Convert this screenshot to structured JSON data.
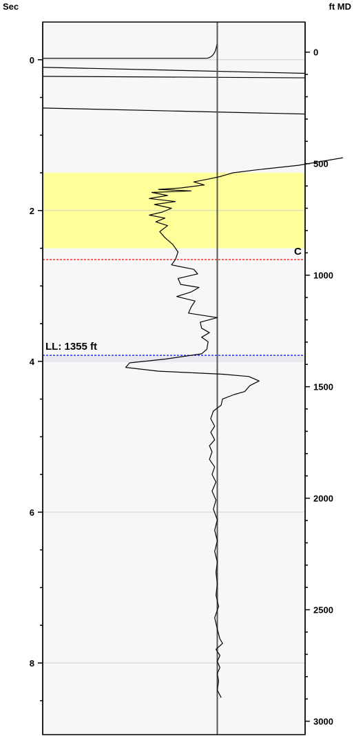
{
  "chart_data": {
    "type": "line",
    "left_axis": {
      "unit": "Sec",
      "range": [
        -0.5,
        8.95
      ],
      "ticks": [
        0,
        2,
        4,
        6,
        8
      ],
      "tick_labels": [
        "0",
        "2",
        "4",
        "6",
        "8"
      ]
    },
    "right_axis": {
      "unit": "ft MD",
      "range": [
        -135,
        3060
      ],
      "ticks": [
        0,
        500,
        1000,
        1500,
        2000,
        2500,
        3000
      ],
      "tick_labels": [
        "0",
        "500",
        "1000",
        "1500",
        "2000",
        "2500",
        "3000"
      ]
    },
    "grid": true,
    "gridlines_sec": [
      0,
      2,
      4,
      6,
      8
    ],
    "highlight_zone": {
      "from_sec": 1.5,
      "to_sec": 2.5,
      "color": "#ffff99"
    },
    "marker_c": {
      "sec": 2.65,
      "label": "C",
      "color": "#ff0000"
    },
    "marker_ll": {
      "sec": 3.92,
      "label": "LL: 1355 ft",
      "color": "#0000ff"
    },
    "center_value": 0,
    "x_range": [
      -1,
      1
    ],
    "series": [
      {
        "points": [
          [
            -1.0,
            0.5
          ],
          [
            1.0,
            0.55
          ]
        ]
      }
    ],
    "curve_x": [
      0.0,
      0.0,
      0.02,
      0.0,
      -0.02,
      0.0,
      0.02,
      0.01,
      0.0,
      -0.02,
      0.0
    ],
    "curve_sec": [
      1.6,
      1.7,
      1.8,
      1.9,
      2.0,
      2.1,
      2.2,
      2.3,
      2.4,
      2.5,
      2.6
    ],
    "main_curve": [
      [
        0.96,
        1.3
      ],
      [
        0.62,
        1.4
      ],
      [
        0.3,
        1.46
      ],
      [
        0.12,
        1.5
      ],
      [
        0.02,
        1.55
      ],
      [
        -0.06,
        1.58
      ],
      [
        -0.18,
        1.62
      ],
      [
        -0.1,
        1.66
      ],
      [
        -0.28,
        1.7
      ],
      [
        -0.45,
        1.72
      ],
      [
        -0.2,
        1.74
      ],
      [
        -0.5,
        1.76
      ],
      [
        -0.38,
        1.8
      ],
      [
        -0.52,
        1.84
      ],
      [
        -0.32,
        1.88
      ],
      [
        -0.48,
        1.92
      ],
      [
        -0.35,
        1.97
      ],
      [
        -0.42,
        2.02
      ],
      [
        -0.52,
        2.06
      ],
      [
        -0.4,
        2.1
      ],
      [
        -0.47,
        2.15
      ],
      [
        -0.38,
        2.2
      ],
      [
        -0.44,
        2.28
      ],
      [
        -0.4,
        2.36
      ],
      [
        -0.34,
        2.45
      ],
      [
        -0.3,
        2.55
      ],
      [
        -0.32,
        2.65
      ],
      [
        -0.35,
        2.72
      ],
      [
        -0.18,
        2.78
      ],
      [
        -0.15,
        2.84
      ],
      [
        -0.3,
        2.9
      ],
      [
        -0.28,
        2.98
      ],
      [
        -0.14,
        3.02
      ],
      [
        -0.2,
        3.08
      ],
      [
        -0.31,
        3.14
      ],
      [
        -0.17,
        3.2
      ],
      [
        -0.2,
        3.28
      ],
      [
        -0.22,
        3.36
      ],
      [
        0.0,
        3.42
      ],
      [
        -0.13,
        3.48
      ],
      [
        -0.12,
        3.56
      ],
      [
        -0.06,
        3.62
      ],
      [
        -0.12,
        3.68
      ],
      [
        -0.07,
        3.74
      ],
      [
        -0.08,
        3.84
      ],
      [
        -0.12,
        3.9
      ],
      [
        -0.4,
        3.97
      ],
      [
        -0.67,
        4.02
      ],
      [
        -0.7,
        4.08
      ],
      [
        -0.45,
        4.13
      ],
      [
        0.04,
        4.17
      ],
      [
        0.24,
        4.2
      ],
      [
        0.32,
        4.26
      ],
      [
        0.25,
        4.32
      ],
      [
        0.21,
        4.4
      ],
      [
        0.13,
        4.44
      ],
      [
        0.04,
        4.5
      ],
      [
        0.03,
        4.58
      ],
      [
        -0.03,
        4.66
      ],
      [
        -0.05,
        4.76
      ],
      [
        -0.02,
        4.86
      ],
      [
        -0.05,
        4.94
      ],
      [
        -0.02,
        5.04
      ],
      [
        -0.06,
        5.12
      ],
      [
        -0.04,
        5.2
      ],
      [
        -0.06,
        5.3
      ],
      [
        -0.02,
        5.4
      ],
      [
        -0.04,
        5.5
      ],
      [
        -0.01,
        5.6
      ],
      [
        -0.04,
        5.72
      ],
      [
        -0.01,
        5.84
      ],
      [
        -0.03,
        5.96
      ],
      [
        0.0,
        6.1
      ],
      [
        -0.02,
        6.24
      ],
      [
        0.0,
        6.38
      ],
      [
        -0.02,
        6.52
      ],
      [
        0.0,
        6.66
      ],
      [
        -0.01,
        6.8
      ],
      [
        0.0,
        6.95
      ],
      [
        -0.01,
        7.1
      ],
      [
        0.01,
        7.25
      ],
      [
        -0.02,
        7.4
      ],
      [
        0.0,
        7.55
      ],
      [
        0.02,
        7.68
      ],
      [
        0.04,
        7.74
      ],
      [
        -0.01,
        7.82
      ],
      [
        0.02,
        7.9
      ],
      [
        0.0,
        7.98
      ],
      [
        0.02,
        8.06
      ],
      [
        0.0,
        8.14
      ],
      [
        0.01,
        8.24
      ],
      [
        0.0,
        8.36
      ],
      [
        0.03,
        8.46
      ]
    ]
  }
}
